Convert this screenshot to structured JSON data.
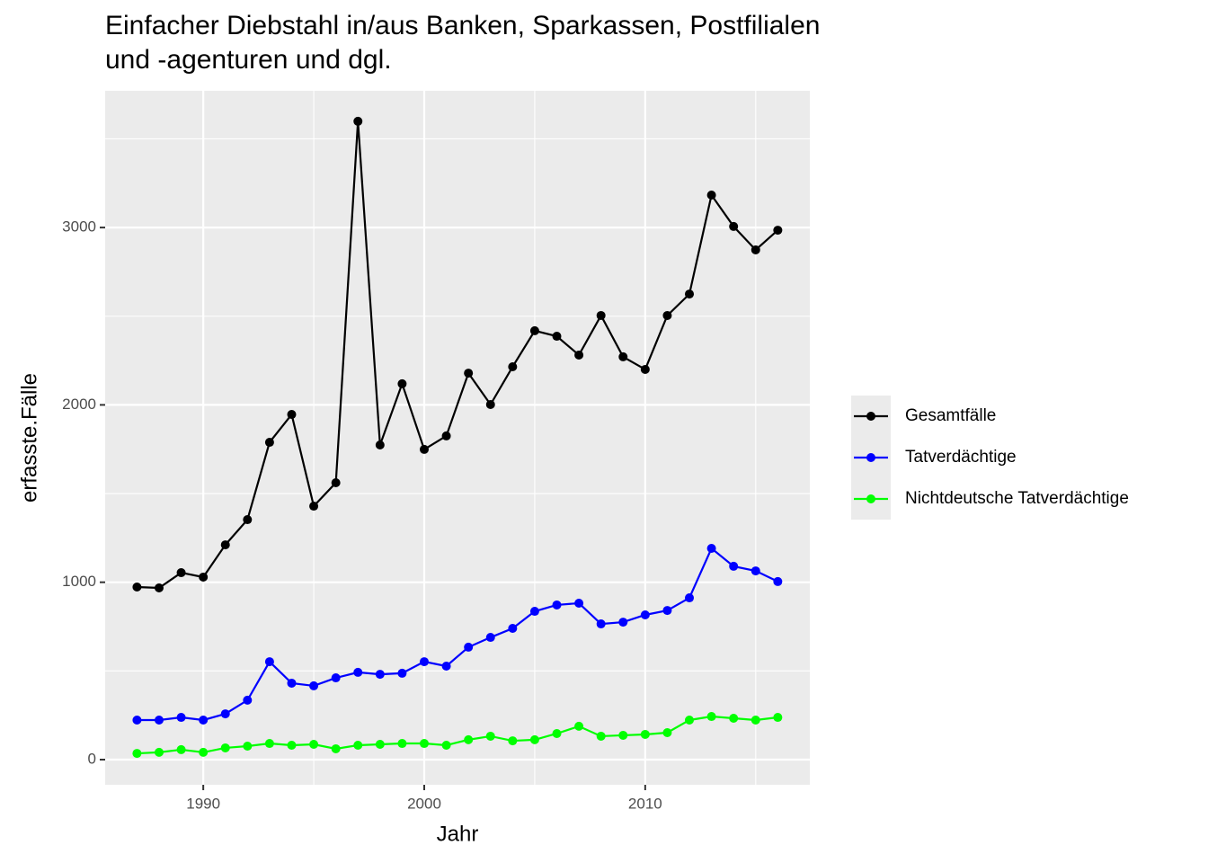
{
  "chart_data": {
    "type": "line",
    "title": "Einfacher Diebstahl in/aus Banken, Sparkassen, Postfilialen\nund -agenturen und dgl.",
    "x_label": "Jahr",
    "y_label": "erfasste.Fälle",
    "x": [
      1987,
      1988,
      1989,
      1990,
      1991,
      1992,
      1993,
      1994,
      1995,
      1996,
      1997,
      1998,
      1999,
      2000,
      2001,
      2002,
      2003,
      2004,
      2005,
      2006,
      2007,
      2008,
      2009,
      2010,
      2011,
      2012,
      2013,
      2014,
      2015,
      2016
    ],
    "series": [
      {
        "name": "Gesamtfälle",
        "color": "#000000",
        "values": [
          973,
          968,
          1054,
          1029,
          1211,
          1353,
          1789,
          1946,
          1429,
          1561,
          3599,
          1774,
          2119,
          1749,
          1825,
          2179,
          2002,
          2215,
          2418,
          2387,
          2281,
          2504,
          2271,
          2200,
          2504,
          2625,
          3183,
          3006,
          2874,
          2985
        ]
      },
      {
        "name": "Tatverdächtige",
        "color": "#0000ff",
        "values": [
          223,
          223,
          238,
          223,
          258,
          335,
          552,
          431,
          416,
          461,
          492,
          481,
          487,
          552,
          527,
          634,
          689,
          740,
          836,
          872,
          882,
          765,
          775,
          816,
          841,
          912,
          1191,
          1090,
          1064,
          1004
        ]
      },
      {
        "name": "Nichtdeutsche Tatverdächtige",
        "color": "#00ff00",
        "values": [
          35,
          41,
          56,
          41,
          66,
          76,
          91,
          81,
          86,
          61,
          81,
          86,
          91,
          91,
          81,
          112,
          132,
          106,
          112,
          147,
          188,
          132,
          137,
          142,
          152,
          223,
          243,
          233,
          223,
          238
        ]
      }
    ],
    "xlim": [
      1985.56,
      2017.45
    ],
    "ylim": [
      -142,
      3771
    ],
    "xticks": [
      1990,
      2000,
      2010
    ],
    "yticks": [
      0,
      1000,
      2000,
      3000
    ],
    "x_minor_grid": [
      1995,
      2005,
      2015
    ],
    "y_minor_grid": [
      500,
      1500,
      2500,
      3500
    ],
    "grid": true,
    "legend": "right"
  }
}
